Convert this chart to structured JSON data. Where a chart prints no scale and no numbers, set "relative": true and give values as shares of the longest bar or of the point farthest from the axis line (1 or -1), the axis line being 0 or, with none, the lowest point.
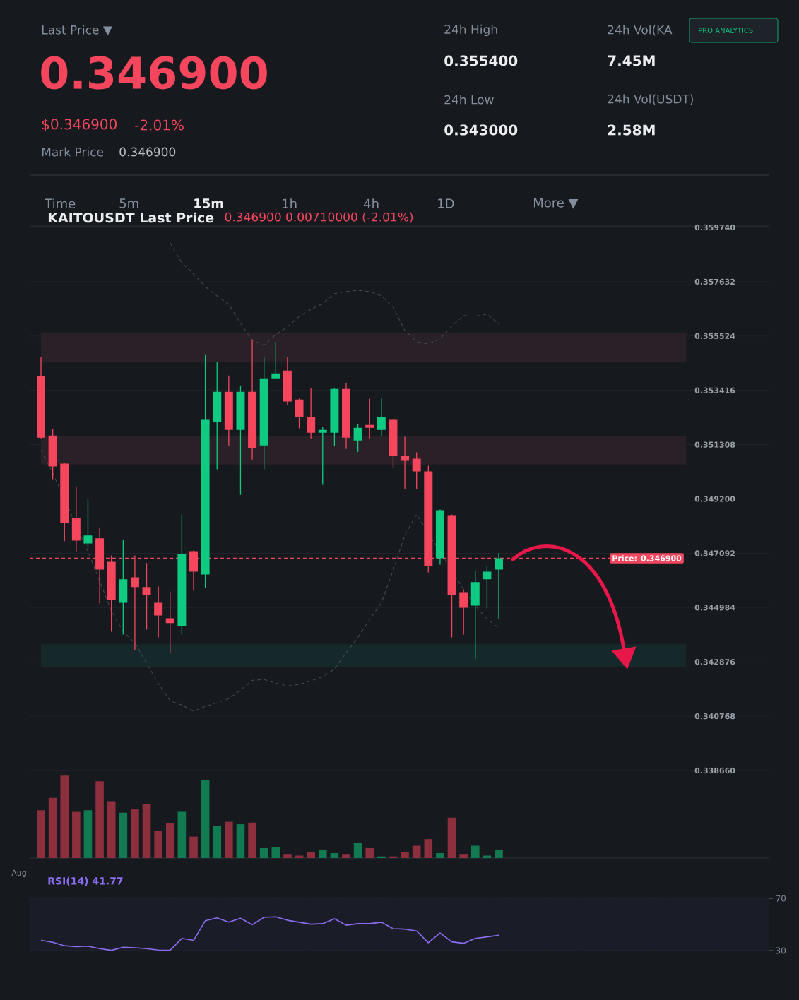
{
  "chart_data": [
    {
      "type": "other",
      "annotations": [
        "Last Price ▼",
        "0.346900",
        "$0.346900",
        "-2.01%",
        "Mark Price",
        "0.346900",
        "24h High",
        "0.355400",
        "24h Vol(KA",
        "7.45M",
        "24h Low",
        "0.343000",
        "24h Vol(USDT)",
        "2.58M",
        "PRO ANALYTICS",
        "Time",
        "5m",
        "15m",
        "1h",
        "4h",
        "1D",
        "More ▼"
      ]
    },
    {
      "type": "candlestick",
      "title": "KAITOUSDT Last Price",
      "subtitle": "0.346900  0.00710000 (-2.01%)",
      "categories": [
        null,
        null,
        null,
        null,
        null,
        null,
        null,
        null,
        null,
        null,
        null,
        null,
        null,
        null,
        null,
        null,
        null,
        null,
        null,
        null,
        null,
        null,
        null,
        null,
        null,
        null,
        null,
        null,
        null,
        null,
        null,
        null,
        null,
        null,
        null,
        null,
        null,
        null,
        null,
        null
      ],
      "ohlc": [
        [
          0.35396,
          0.3547,
          0.35155,
          0.35158
        ],
        [
          0.35166,
          0.35191,
          0.34997,
          0.35046
        ],
        [
          0.35057,
          0.3506,
          0.34756,
          0.34827
        ],
        [
          0.34846,
          0.34969,
          0.34715,
          0.34758
        ],
        [
          0.34747,
          0.3492,
          0.34734,
          0.34778
        ],
        [
          0.34767,
          0.3481,
          0.34515,
          0.34646
        ],
        [
          0.34676,
          0.34701,
          0.34405,
          0.34528
        ],
        [
          0.34517,
          0.34761,
          0.34394,
          0.34608
        ],
        [
          0.34616,
          0.34701,
          0.34334,
          0.34578
        ],
        [
          0.34578,
          0.34671,
          0.34413,
          0.34548
        ],
        [
          0.34517,
          0.3458,
          0.34383,
          0.34468
        ],
        [
          0.34457,
          0.34561,
          0.34323,
          0.34438
        ],
        [
          0.34427,
          0.3486,
          0.34394,
          0.34706
        ],
        [
          0.34717,
          0.3472,
          0.34564,
          0.34638
        ],
        [
          0.34627,
          0.35481,
          0.34575,
          0.35227
        ],
        [
          0.35218,
          0.35451,
          0.35035,
          0.35336
        ],
        [
          0.35336,
          0.35399,
          0.35125,
          0.35188
        ],
        [
          0.35188,
          0.35361,
          0.34936,
          0.35336
        ],
        [
          0.35336,
          0.35539,
          0.35073,
          0.35117
        ],
        [
          0.35128,
          0.3547,
          0.35035,
          0.35388
        ],
        [
          0.35388,
          0.3553,
          0.35385,
          0.35407
        ],
        [
          0.35418,
          0.3547,
          0.35284,
          0.35298
        ],
        [
          0.35306,
          0.35309,
          0.35194,
          0.35238
        ],
        [
          0.35238,
          0.3535,
          0.35155,
          0.35177
        ],
        [
          0.35177,
          0.35199,
          0.34975,
          0.35188
        ],
        [
          0.35177,
          0.3535,
          0.35125,
          0.35347
        ],
        [
          0.35347,
          0.35369,
          0.35114,
          0.35158
        ],
        [
          0.35147,
          0.3521,
          0.35103,
          0.35196
        ],
        [
          0.35207,
          0.35309,
          0.35155,
          0.35196
        ],
        [
          0.35188,
          0.35309,
          0.35164,
          0.35238
        ],
        [
          0.35227,
          0.35229,
          0.35043,
          0.35087
        ],
        [
          0.35087,
          0.35161,
          0.34958,
          0.35068
        ],
        [
          0.35076,
          0.35101,
          0.34958,
          0.35027
        ],
        [
          0.35027,
          0.35049,
          0.34635,
          0.3466
        ],
        [
          0.3469,
          0.34879,
          0.34665,
          0.34876
        ],
        [
          0.34857,
          0.3486,
          0.34383,
          0.34548
        ],
        [
          0.34558,
          0.34569,
          0.34394,
          0.34498
        ],
        [
          0.34506,
          0.34641,
          0.343,
          0.34597
        ],
        [
          0.34608,
          0.3466,
          0.34496,
          0.34638
        ],
        [
          0.34646,
          0.34709,
          0.34454,
          0.3469
        ]
      ],
      "colors": [
        "#f6465d",
        "#f6465d",
        "#f6465d",
        "#f6465d",
        "#0ecb81",
        "#f6465d",
        "#f6465d",
        "#0ecb81",
        "#f6465d",
        "#f6465d",
        "#f6465d",
        "#f6465d",
        "#0ecb81",
        "#f6465d",
        "#0ecb81",
        "#0ecb81",
        "#f6465d",
        "#0ecb81",
        "#f6465d",
        "#0ecb81",
        "#0ecb81",
        "#f6465d",
        "#f6465d",
        "#f6465d",
        "#0ecb81",
        "#0ecb81",
        "#f6465d",
        "#0ecb81",
        "#f6465d",
        "#0ecb81",
        "#f6465d",
        "#f6465d",
        "#f6465d",
        "#f6465d",
        "#0ecb81",
        "#f6465d",
        "#f6465d",
        "#0ecb81",
        "#0ecb81",
        "#0ecb81"
      ],
      "series": [
        {
          "type": "line",
          "color": "#454a53",
          "line_style": "dashed",
          "values": [
            null,
            null,
            null,
            null,
            null,
            null,
            null,
            null,
            null,
            null,
            null,
            0.35914,
            0.35837,
            0.35793,
            0.35744,
            0.35708,
            0.35676,
            0.35602,
            0.35536,
            0.35517,
            0.35558,
            0.35588,
            0.35629,
            0.35656,
            0.35678,
            0.35717,
            0.35725,
            0.3573,
            0.35725,
            0.35708,
            0.35665,
            0.35574,
            0.3553,
            0.35522,
            0.35541,
            0.35591,
            0.35632,
            0.35629,
            0.35637,
            0.35599
          ]
        },
        {
          "type": "line",
          "color": "#454a53",
          "line_style": "dashed",
          "values": [
            0.35109,
            0.35021,
            null,
            null,
            0.34717,
            0.34602,
            0.34485,
            0.34405,
            0.34361,
            0.34282,
            0.34203,
            0.34137,
            0.3412,
            0.34096,
            0.34115,
            0.34129,
            0.34145,
            0.34178,
            0.34216,
            0.34219,
            0.34205,
            0.34194,
            0.342,
            0.34214,
            0.3423,
            0.3426,
            0.34323,
            0.34383,
            0.34452,
            0.34517,
            0.34643,
            0.3478,
            0.3486,
            null,
            null,
            null,
            0.34569,
            0.34506,
            0.34454,
            0.34419
          ]
        }
      ],
      "ylim": [
        0.33866,
        0.35974
      ],
      "yticks": [
        {
          "value": 0.33866,
          "label": "0.338660"
        },
        0.340768,
        0.342876,
        0.344984,
        0.347092,
        {
          "value": 0.3492,
          "label": "0.349200"
        },
        0.351308,
        0.353416,
        0.355524,
        0.357632,
        {
          "value": 0.35974,
          "label": "0.359740"
        }
      ],
      "grid": "y",
      "tick_labels": "y",
      "ref_lines": [
        {
          "axis": "y",
          "value": 0.3469,
          "label": "Price: 0.346900",
          "color": "#f6465d",
          "line_style": "dashed"
        }
      ],
      "bands": [
        {
          "axis": "y",
          "from": 0.35451,
          "to": 0.35566,
          "color": "#2a2027"
        },
        {
          "axis": "y",
          "from": 0.35054,
          "to": 0.35164,
          "color": "#2a2027"
        },
        {
          "axis": "y",
          "from": 0.34268,
          "to": 0.34356,
          "color": "#16292a"
        }
      ]
    },
    {
      "type": "bar",
      "relative": true,
      "annotations": [
        "Aug"
      ],
      "categories": [
        null,
        null,
        null,
        null,
        null,
        null,
        null,
        null,
        null,
        null,
        null,
        null,
        null,
        null,
        null,
        null,
        null,
        null,
        null,
        null,
        null,
        null,
        null,
        null,
        null,
        null,
        null,
        null,
        null,
        null,
        null,
        null,
        null,
        null,
        null,
        null,
        null,
        null,
        null,
        null
      ],
      "values": [
        0.58,
        0.73,
        1,
        0.56,
        0.58,
        0.93,
        0.69,
        0.55,
        0.59,
        0.66,
        0.33,
        0.42,
        0.56,
        0.26,
        0.95,
        0.39,
        0.44,
        0.41,
        0.43,
        0.12,
        0.13,
        0.05,
        0.03,
        0.07,
        0.1,
        0.06,
        0.05,
        0.18,
        0.12,
        0.02,
        0.02,
        0.07,
        0.15,
        0.23,
        0.06,
        0.49,
        0.05,
        0.15,
        0.03,
        0.1
      ],
      "colors": [
        "#8e2f3e",
        "#8e2f3e",
        "#8e2f3e",
        "#8e2f3e",
        "#117a51",
        "#8e2f3e",
        "#8e2f3e",
        "#117a51",
        "#8e2f3e",
        "#8e2f3e",
        "#8e2f3e",
        "#8e2f3e",
        "#117a51",
        "#8e2f3e",
        "#117a51",
        "#117a51",
        "#8e2f3e",
        "#117a51",
        "#8e2f3e",
        "#117a51",
        "#117a51",
        "#8e2f3e",
        "#8e2f3e",
        "#8e2f3e",
        "#117a51",
        "#117a51",
        "#8e2f3e",
        "#117a51",
        "#8e2f3e",
        "#117a51",
        "#8e2f3e",
        "#8e2f3e",
        "#8e2f3e",
        "#8e2f3e",
        "#117a51",
        "#8e2f3e",
        "#8e2f3e",
        "#117a51",
        "#117a51",
        "#117a51"
      ]
    },
    {
      "type": "line",
      "title": "RSI(14)  41.77",
      "color": "#8c6cf2",
      "categories": [
        null,
        null,
        null,
        null,
        null,
        null,
        null,
        null,
        null,
        null,
        null,
        null,
        null,
        null,
        null,
        null,
        null,
        null,
        null,
        null,
        null,
        null,
        null,
        null,
        null,
        null,
        null,
        null,
        null,
        null,
        null,
        null,
        null,
        null,
        null,
        null,
        null,
        null,
        null,
        null
      ],
      "values": [
        37.8,
        36.4,
        33.7,
        33.0,
        33.4,
        31.5,
        30.2,
        32.6,
        32.2,
        31.5,
        30.4,
        30.2,
        39.3,
        37.8,
        52.8,
        55.0,
        51.7,
        54.7,
        49.8,
        55.4,
        55.8,
        53.2,
        51.7,
        50.2,
        50.6,
        54.3,
        49.4,
        50.6,
        50.6,
        51.7,
        46.8,
        46.4,
        45.0,
        36.0,
        43.5,
        36.7,
        35.6,
        39.3,
        40.5,
        41.77
      ],
      "ylim": [
        30,
        70
      ],
      "yticks": [
        30,
        70
      ],
      "grid": "y",
      "tick_labels": "y"
    }
  ]
}
